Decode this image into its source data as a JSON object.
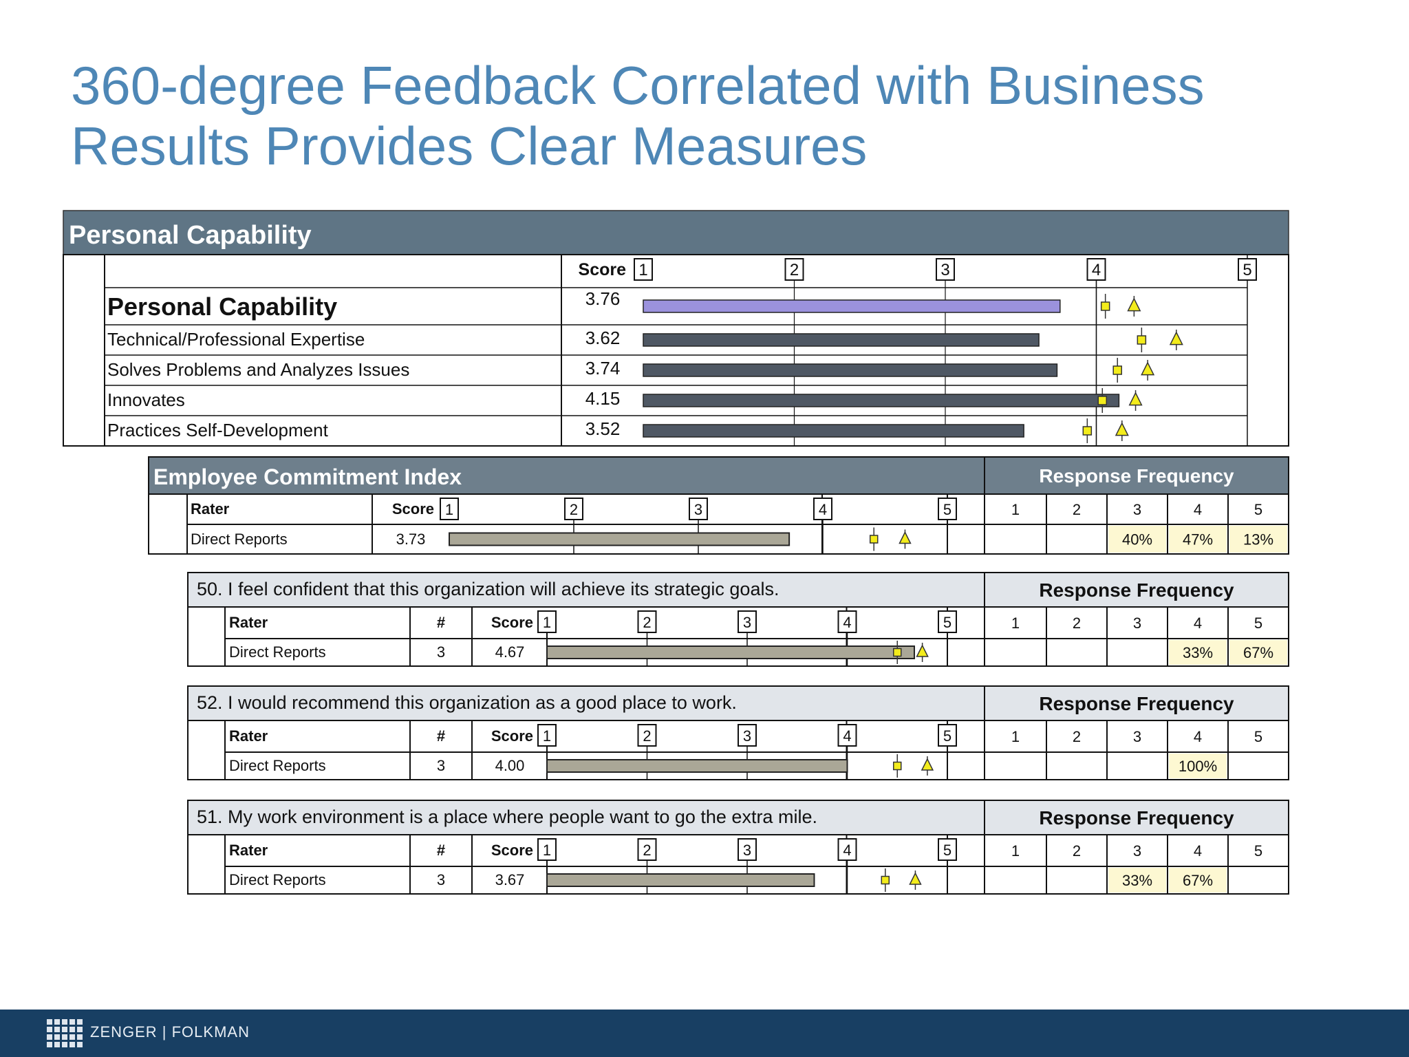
{
  "slide": {
    "title_line1": "360-degree Feedback Correlated with Business",
    "title_line2": "Results Provides Clear Measures",
    "brand": "ZENGER | FOLKMAN",
    "logo_icon": "zf-grid-logo-icon"
  },
  "colors": {
    "title": "#4e87b6",
    "header_band": "#5f7585",
    "ecl_header_band": "#6e7f8c",
    "question_band": "#e1e5ea",
    "personal_bar_highlight": "#9b92dd",
    "personal_bar": "#4f5864",
    "ecl_bar": "#aaa797",
    "freq_cell": "#fdf8d2",
    "marker_fill": "#f3ec1c",
    "footer": "#183f63"
  },
  "personal_capability": {
    "header": "Personal Capability",
    "score_label": "Score",
    "scale_labels": [
      "1",
      "2",
      "3",
      "4",
      "5"
    ]
  },
  "employee_commitment": {
    "header": "Employee Commitment Index",
    "freq_header": "Response Frequency",
    "rater_label": "Rater",
    "score_label": "Score",
    "scale_labels": [
      "1",
      "2",
      "3",
      "4",
      "5"
    ],
    "freq_labels": [
      "1",
      "2",
      "3",
      "4",
      "5"
    ]
  },
  "questions_common": {
    "freq_header": "Response Frequency",
    "rater_label": "Rater",
    "count_label": "#",
    "score_label": "Score",
    "scale_labels": [
      "1",
      "2",
      "3",
      "4",
      "5"
    ],
    "freq_labels": [
      "1",
      "2",
      "3",
      "4",
      "5"
    ]
  },
  "chart_data": [
    {
      "type": "bar",
      "title": "Personal Capability",
      "xlim": [
        1,
        5
      ],
      "categories": [
        "Personal Capability",
        "Technical/Professional Expertise",
        "Solves Problems and Analyzes Issues",
        "Innovates",
        "Practices Self-Development"
      ],
      "score_labels": [
        "3.76",
        "3.62",
        "3.74",
        "4.15",
        "3.52"
      ],
      "values": [
        3.76,
        3.62,
        3.74,
        4.15,
        3.52
      ],
      "square_marker": [
        4.06,
        4.3,
        4.14,
        4.04,
        3.94
      ],
      "triangle_marker": [
        4.25,
        4.53,
        4.34,
        4.26,
        4.17
      ]
    },
    {
      "type": "bar",
      "title": "Employee Commitment Index",
      "xlim": [
        1,
        5
      ],
      "categories": [
        "Direct Reports"
      ],
      "score_labels": [
        "3.73"
      ],
      "values": [
        3.73
      ],
      "square_marker": [
        4.41
      ],
      "triangle_marker": [
        4.66
      ],
      "response_frequency": [
        [
          "",
          "",
          "40%",
          "47%",
          "13%"
        ]
      ]
    },
    {
      "type": "bar",
      "title": "50. I feel confident that this organization will achieve its strategic goals.",
      "xlim": [
        1,
        5
      ],
      "categories": [
        "Direct Reports"
      ],
      "counts": [
        "3"
      ],
      "score_labels": [
        "4.67"
      ],
      "values": [
        4.67
      ],
      "square_marker": [
        4.5
      ],
      "triangle_marker": [
        4.75
      ],
      "response_frequency": [
        [
          "",
          "",
          "",
          "33%",
          "67%"
        ]
      ]
    },
    {
      "type": "bar",
      "title": "52. I would recommend this organization as a good place to work.",
      "xlim": [
        1,
        5
      ],
      "categories": [
        "Direct Reports"
      ],
      "counts": [
        "3"
      ],
      "score_labels": [
        "4.00"
      ],
      "values": [
        4.0
      ],
      "square_marker": [
        4.5
      ],
      "triangle_marker": [
        4.8
      ],
      "response_frequency": [
        [
          "",
          "",
          "",
          "100%",
          ""
        ]
      ]
    },
    {
      "type": "bar",
      "title": "51. My work environment is a place where people want to go the extra mile.",
      "xlim": [
        1,
        5
      ],
      "categories": [
        "Direct Reports"
      ],
      "counts": [
        "3"
      ],
      "score_labels": [
        "3.67"
      ],
      "values": [
        3.67
      ],
      "square_marker": [
        4.38
      ],
      "triangle_marker": [
        4.68
      ],
      "response_frequency": [
        [
          "",
          "",
          "33%",
          "67%",
          ""
        ]
      ]
    }
  ]
}
